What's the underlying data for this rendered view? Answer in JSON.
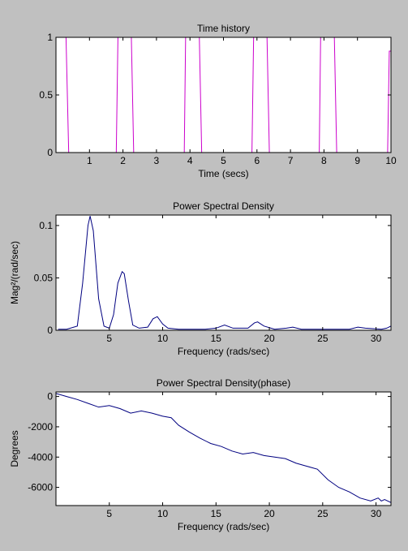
{
  "chart_data": [
    {
      "type": "line",
      "title": "Time history",
      "xlabel": "Time (secs)",
      "ylabel": "",
      "xlim": [
        0,
        10
      ],
      "ylim": [
        0,
        1
      ],
      "xticks": [
        1,
        2,
        3,
        4,
        5,
        6,
        7,
        8,
        9,
        10
      ],
      "yticks": [
        0,
        0.5,
        1
      ],
      "ytick_labels": [
        "0",
        "0.5",
        "1"
      ],
      "color": "#cc00cc",
      "series": [
        {
          "x": [
            0.05,
            0.3,
            0.38,
            1.8,
            1.85,
            2.25,
            2.32,
            3.83,
            3.87,
            4.28,
            4.35,
            5.85,
            5.9,
            6.3,
            6.37,
            7.86,
            7.9,
            8.31,
            8.38,
            9.9,
            9.95,
            10.0
          ],
          "y": [
            1,
            1,
            0,
            0,
            1,
            1,
            0,
            0,
            1,
            1,
            0,
            0,
            1,
            1,
            0,
            0,
            1,
            1,
            0,
            0,
            0.88,
            0.88
          ]
        }
      ]
    },
    {
      "type": "line",
      "title": "Power Spectral Density",
      "xlabel": "Frequency (rads/sec)",
      "ylabel": "Mag²/(rad/sec)",
      "xlim": [
        0,
        31.4
      ],
      "ylim": [
        0,
        0.11
      ],
      "xticks": [
        5,
        10,
        15,
        20,
        25,
        30
      ],
      "yticks": [
        0,
        0.05,
        0.1
      ],
      "ytick_labels": [
        "0",
        "0.05",
        "0.1"
      ],
      "color": "#000080",
      "series": [
        {
          "x": [
            0.2,
            1.0,
            2.0,
            2.5,
            3.0,
            3.2,
            3.5,
            4.0,
            4.5,
            5.0,
            5.4,
            5.8,
            6.2,
            6.4,
            6.8,
            7.2,
            7.8,
            8.6,
            9.1,
            9.5,
            10.0,
            10.5,
            11.5,
            14.0,
            15.0,
            15.8,
            16.6,
            18.0,
            18.6,
            18.9,
            19.5,
            20.5,
            21.6,
            22.2,
            23.0,
            27.5,
            28.3,
            29.0,
            30.5,
            31.0,
            31.4
          ],
          "y": [
            0.001,
            0.001,
            0.004,
            0.045,
            0.1,
            0.109,
            0.095,
            0.03,
            0.004,
            0.002,
            0.015,
            0.045,
            0.056,
            0.054,
            0.028,
            0.005,
            0.002,
            0.003,
            0.011,
            0.013,
            0.006,
            0.002,
            0.001,
            0.001,
            0.002,
            0.005,
            0.002,
            0.002,
            0.007,
            0.008,
            0.004,
            0.001,
            0.002,
            0.003,
            0.001,
            0.001,
            0.003,
            0.002,
            0.001,
            0.002,
            0.004
          ]
        }
      ]
    },
    {
      "type": "line",
      "title": "Power Spectral Density(phase)",
      "xlabel": "Frequency (rads/sec)",
      "ylabel": "Degrees",
      "xlim": [
        0,
        31.4
      ],
      "ylim": [
        -7200,
        300
      ],
      "xticks": [
        5,
        10,
        15,
        20,
        25,
        30
      ],
      "yticks": [
        0,
        -2000,
        -4000,
        -6000
      ],
      "ytick_labels": [
        "0",
        "-2000",
        "-4000",
        "-6000"
      ],
      "color": "#000080",
      "series": [
        {
          "x": [
            0,
            1,
            2,
            3,
            4,
            5,
            6,
            7,
            8,
            9,
            10,
            10.8,
            11.5,
            12.5,
            13.5,
            14.5,
            15.5,
            16.5,
            17.5,
            18.5,
            19.5,
            20.5,
            21.5,
            22.5,
            23.5,
            24.5,
            25.5,
            26.5,
            27.5,
            28.5,
            29.5,
            30.2,
            30.5,
            30.8,
            31.4
          ],
          "y": [
            200,
            0,
            -200,
            -450,
            -700,
            -600,
            -800,
            -1100,
            -950,
            -1100,
            -1300,
            -1400,
            -1900,
            -2350,
            -2750,
            -3100,
            -3300,
            -3600,
            -3800,
            -3700,
            -3900,
            -4000,
            -4100,
            -4400,
            -4600,
            -4800,
            -5500,
            -6000,
            -6300,
            -6700,
            -6900,
            -6700,
            -6900,
            -6800,
            -7000
          ]
        }
      ]
    }
  ]
}
